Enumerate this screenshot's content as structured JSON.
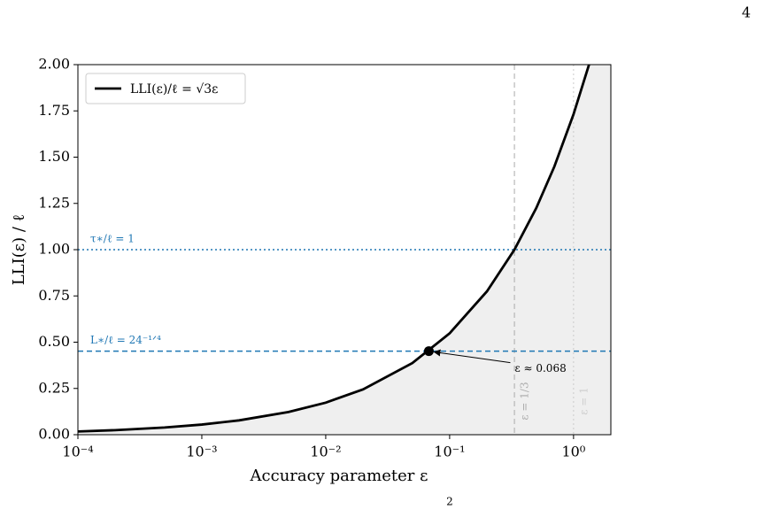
{
  "page_number": "4",
  "footnote_mark": "2",
  "chart_data": {
    "type": "line",
    "xlabel": "Accuracy parameter ε",
    "ylabel": "LLI(ε) / ℓ",
    "xscale": "log",
    "xlim": [
      0.0001,
      2
    ],
    "ylim": [
      0,
      2
    ],
    "xticks": [
      {
        "value": 0.0001,
        "label": "10⁻⁴"
      },
      {
        "value": 0.001,
        "label": "10⁻³"
      },
      {
        "value": 0.01,
        "label": "10⁻²"
      },
      {
        "value": 0.1,
        "label": "10⁻¹"
      },
      {
        "value": 1,
        "label": "10⁰"
      }
    ],
    "yticks": [
      {
        "value": 0,
        "label": "0.00"
      },
      {
        "value": 0.25,
        "label": "0.25"
      },
      {
        "value": 0.5,
        "label": "0.50"
      },
      {
        "value": 0.75,
        "label": "0.75"
      },
      {
        "value": 1,
        "label": "1.00"
      },
      {
        "value": 1.25,
        "label": "1.25"
      },
      {
        "value": 1.5,
        "label": "1.50"
      },
      {
        "value": 1.75,
        "label": "1.75"
      },
      {
        "value": 2,
        "label": "2.00"
      }
    ],
    "series": [
      {
        "name": "LLI(ε)/ℓ = √3ε",
        "color": "#000000",
        "fill": "#efefef",
        "x": [
          0.0001,
          0.0002,
          0.0005,
          0.001,
          0.002,
          0.005,
          0.01,
          0.02,
          0.05,
          0.1,
          0.2,
          0.3333,
          0.5,
          0.7,
          1,
          1.3333
        ],
        "values": [
          0.0173,
          0.0245,
          0.0387,
          0.0548,
          0.0775,
          0.1225,
          0.1732,
          0.2449,
          0.3873,
          0.5477,
          0.7746,
          1.0,
          1.2247,
          1.4491,
          1.7321,
          2.0
        ]
      }
    ],
    "legend_loc": "upper left",
    "hlines": [
      {
        "value": 1,
        "label": "τ∗/ℓ = 1",
        "color": "#1f77b4",
        "style": "dotted"
      },
      {
        "value": 0.4518,
        "label": "L∗/ℓ = 24⁻¹ᐟ⁴",
        "color": "#1f77b4",
        "style": "dashed"
      }
    ],
    "vlines": [
      {
        "value": 0.3333,
        "label": "ε = 1/3",
        "color": "#aaaaaa",
        "style": "dashed"
      },
      {
        "value": 1,
        "label": "ε = 1",
        "color": "#cccccc",
        "style": "dotted"
      }
    ],
    "point": {
      "x": 0.068,
      "y": 0.4518,
      "label": "ε ≈ 0.068"
    }
  }
}
